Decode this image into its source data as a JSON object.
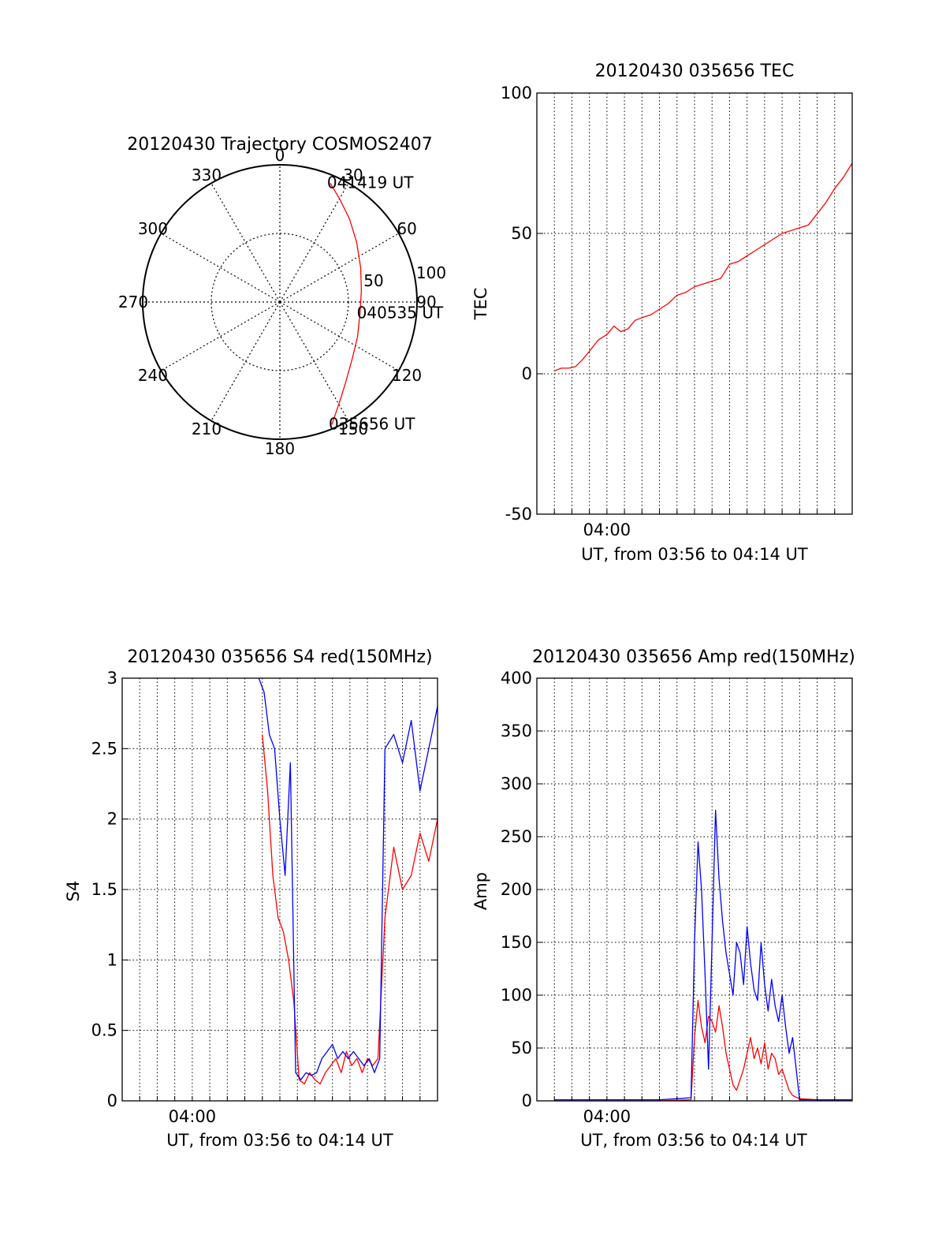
{
  "colors": {
    "red": "#ff0000",
    "blue": "#0000ff",
    "axis": "#000000",
    "grid": "#000000",
    "background": "#ffffff"
  },
  "chart_data": [
    {
      "id": "trajectory",
      "type": "scatter",
      "subtype": "polar-skyplot",
      "title": "20120430 Trajectory COSMOS2407",
      "grid": true,
      "angle_labels": [
        "0",
        "30",
        "60",
        "90",
        "120",
        "150",
        "180",
        "210",
        "240",
        "270",
        "300",
        "330"
      ],
      "angles": [
        0,
        30,
        60,
        90,
        120,
        150,
        180,
        210,
        240,
        270,
        300,
        330
      ],
      "radial_labels": [
        "50",
        "100"
      ],
      "radial_values": [
        50,
        100
      ],
      "rlim": [
        0,
        100
      ],
      "series": [
        {
          "color": "#ff0000",
          "points": [
            {
              "az": 157,
              "r": 97
            },
            {
              "az": 150,
              "r": 86
            },
            {
              "az": 141,
              "r": 76
            },
            {
              "az": 128,
              "r": 67
            },
            {
              "az": 114,
              "r": 62
            },
            {
              "az": 98,
              "r": 59
            },
            {
              "az": 82,
              "r": 60
            },
            {
              "az": 67,
              "r": 64
            },
            {
              "az": 52,
              "r": 71
            },
            {
              "az": 40,
              "r": 79
            },
            {
              "az": 30,
              "r": 87
            },
            {
              "az": 23,
              "r": 94
            }
          ]
        }
      ],
      "annotations": [
        {
          "text": "041419 UT",
          "az": 23,
          "r": 94
        },
        {
          "text": "040535 UT",
          "az": 98,
          "r": 59
        },
        {
          "text": "035656 UT",
          "az": 157,
          "r": 97
        }
      ]
    },
    {
      "id": "tec",
      "type": "line",
      "title": "20120430 035656 TEC",
      "xlabel": "UT, from 03:56 to 04:14 UT",
      "ylabel": "TEC",
      "x_unit": "minutes after 03:56",
      "xlim": [
        0,
        18
      ],
      "ylim": [
        -50,
        100
      ],
      "yticks": [
        -50,
        0,
        50,
        100
      ],
      "xticks": [
        {
          "value": 4,
          "label": "04:00"
        }
      ],
      "grid": true,
      "series": [
        {
          "color": "#ff0000",
          "x": [
            1.0,
            1.4,
            1.8,
            2.2,
            2.6,
            3.0,
            3.5,
            4.0,
            4.4,
            4.8,
            5.2,
            5.6,
            6.0,
            6.5,
            7.0,
            7.5,
            8.0,
            8.5,
            9.0,
            9.5,
            10.0,
            10.5,
            11.0,
            11.5,
            12.0,
            12.5,
            13.0,
            13.5,
            14.0,
            14.5,
            15.0,
            15.5,
            16.0,
            16.5,
            17.0,
            17.5,
            18.0
          ],
          "y": [
            1,
            2,
            2,
            2.5,
            5,
            8,
            12,
            14,
            17,
            15,
            16,
            19,
            20,
            21,
            23,
            25,
            28,
            29,
            31,
            32,
            33,
            34,
            39,
            40,
            42,
            44,
            46,
            48,
            50,
            51,
            52,
            53,
            57,
            61,
            66,
            70,
            75
          ]
        }
      ]
    },
    {
      "id": "s4",
      "type": "line",
      "title": "20120430 035656 S4 red(150MHz)",
      "xlabel": "UT, from 03:56 to 04:14 UT",
      "ylabel": "S4",
      "x_unit": "minutes after 03:56",
      "xlim": [
        0,
        18
      ],
      "ylim": [
        0,
        3
      ],
      "yticks": [
        0,
        0.5,
        1,
        1.5,
        2,
        2.5,
        3
      ],
      "xticks": [
        {
          "value": 4,
          "label": "04:00"
        }
      ],
      "grid": true,
      "series": [
        {
          "color": "#ff0000",
          "x": [
            8.0,
            8.3,
            8.6,
            8.9,
            9.2,
            9.5,
            9.8,
            10.1,
            10.4,
            10.7,
            11.0,
            11.3,
            11.6,
            11.9,
            12.2,
            12.5,
            12.8,
            13.1,
            13.4,
            13.7,
            14.0,
            14.3,
            14.6,
            15.0,
            15.5,
            16.0,
            16.5,
            17.0,
            17.5,
            18.0
          ],
          "y": [
            2.6,
            2.2,
            1.6,
            1.3,
            1.2,
            1.0,
            0.7,
            0.15,
            0.12,
            0.2,
            0.15,
            0.12,
            0.2,
            0.25,
            0.3,
            0.2,
            0.35,
            0.25,
            0.3,
            0.2,
            0.3,
            0.25,
            0.3,
            1.3,
            1.8,
            1.5,
            1.6,
            1.9,
            1.7,
            2.0
          ]
        },
        {
          "color": "#0000ff",
          "x": [
            7.8,
            8.1,
            8.4,
            8.7,
            9.0,
            9.3,
            9.6,
            9.9,
            10.2,
            10.5,
            10.8,
            11.1,
            11.4,
            11.7,
            12.0,
            12.3,
            12.6,
            12.9,
            13.2,
            13.5,
            13.8,
            14.1,
            14.4,
            14.7,
            15.0,
            15.5,
            16.0,
            16.5,
            17.0,
            17.5,
            18.0
          ],
          "y": [
            3.0,
            2.9,
            2.6,
            2.5,
            2.0,
            1.6,
            2.4,
            0.2,
            0.15,
            0.2,
            0.18,
            0.2,
            0.3,
            0.35,
            0.4,
            0.3,
            0.35,
            0.3,
            0.35,
            0.3,
            0.25,
            0.3,
            0.2,
            0.3,
            2.5,
            2.6,
            2.4,
            2.7,
            2.2,
            2.5,
            2.8
          ]
        }
      ]
    },
    {
      "id": "amp",
      "type": "line",
      "title": "20120430 035656 Amp red(150MHz)",
      "xlabel": "UT, from 03:56 to 04:14 UT",
      "ylabel": "Amp",
      "x_unit": "minutes after 03:56",
      "xlim": [
        0,
        18
      ],
      "ylim": [
        0,
        400
      ],
      "yticks": [
        0,
        50,
        100,
        150,
        200,
        250,
        300,
        350,
        400
      ],
      "xticks": [
        {
          "value": 4,
          "label": "04:00"
        }
      ],
      "grid": true,
      "series": [
        {
          "color": "#ff0000",
          "x": [
            1.0,
            3.0,
            5.0,
            7.0,
            8.8,
            9.0,
            9.2,
            9.4,
            9.6,
            9.8,
            10.0,
            10.2,
            10.4,
            10.6,
            10.8,
            11.0,
            11.2,
            11.4,
            11.6,
            11.8,
            12.0,
            12.2,
            12.4,
            12.6,
            12.8,
            13.0,
            13.2,
            13.4,
            13.6,
            13.8,
            14.0,
            14.2,
            14.4,
            14.6,
            15.0,
            16.0,
            17.0,
            18.0
          ],
          "y": [
            0,
            0,
            0,
            0,
            1,
            60,
            95,
            70,
            55,
            80,
            75,
            65,
            90,
            70,
            45,
            30,
            15,
            10,
            20,
            30,
            45,
            60,
            40,
            50,
            35,
            55,
            30,
            45,
            40,
            25,
            30,
            20,
            10,
            5,
            2,
            1,
            1,
            1
          ]
        },
        {
          "color": "#0000ff",
          "x": [
            1.0,
            3.0,
            5.0,
            7.0,
            8.0,
            8.8,
            9.0,
            9.2,
            9.4,
            9.6,
            9.8,
            10.0,
            10.2,
            10.4,
            10.6,
            10.8,
            11.0,
            11.2,
            11.4,
            11.6,
            11.8,
            12.0,
            12.2,
            12.4,
            12.6,
            12.8,
            13.0,
            13.2,
            13.4,
            13.6,
            13.8,
            14.0,
            14.2,
            14.4,
            14.6,
            15.0,
            16.0,
            17.0,
            18.0
          ],
          "y": [
            1,
            1,
            1,
            1,
            2,
            3,
            150,
            245,
            200,
            120,
            30,
            150,
            275,
            210,
            170,
            140,
            120,
            100,
            150,
            140,
            110,
            165,
            130,
            105,
            95,
            150,
            110,
            85,
            115,
            90,
            75,
            100,
            70,
            45,
            60,
            1,
            1,
            1,
            1
          ]
        }
      ]
    }
  ]
}
